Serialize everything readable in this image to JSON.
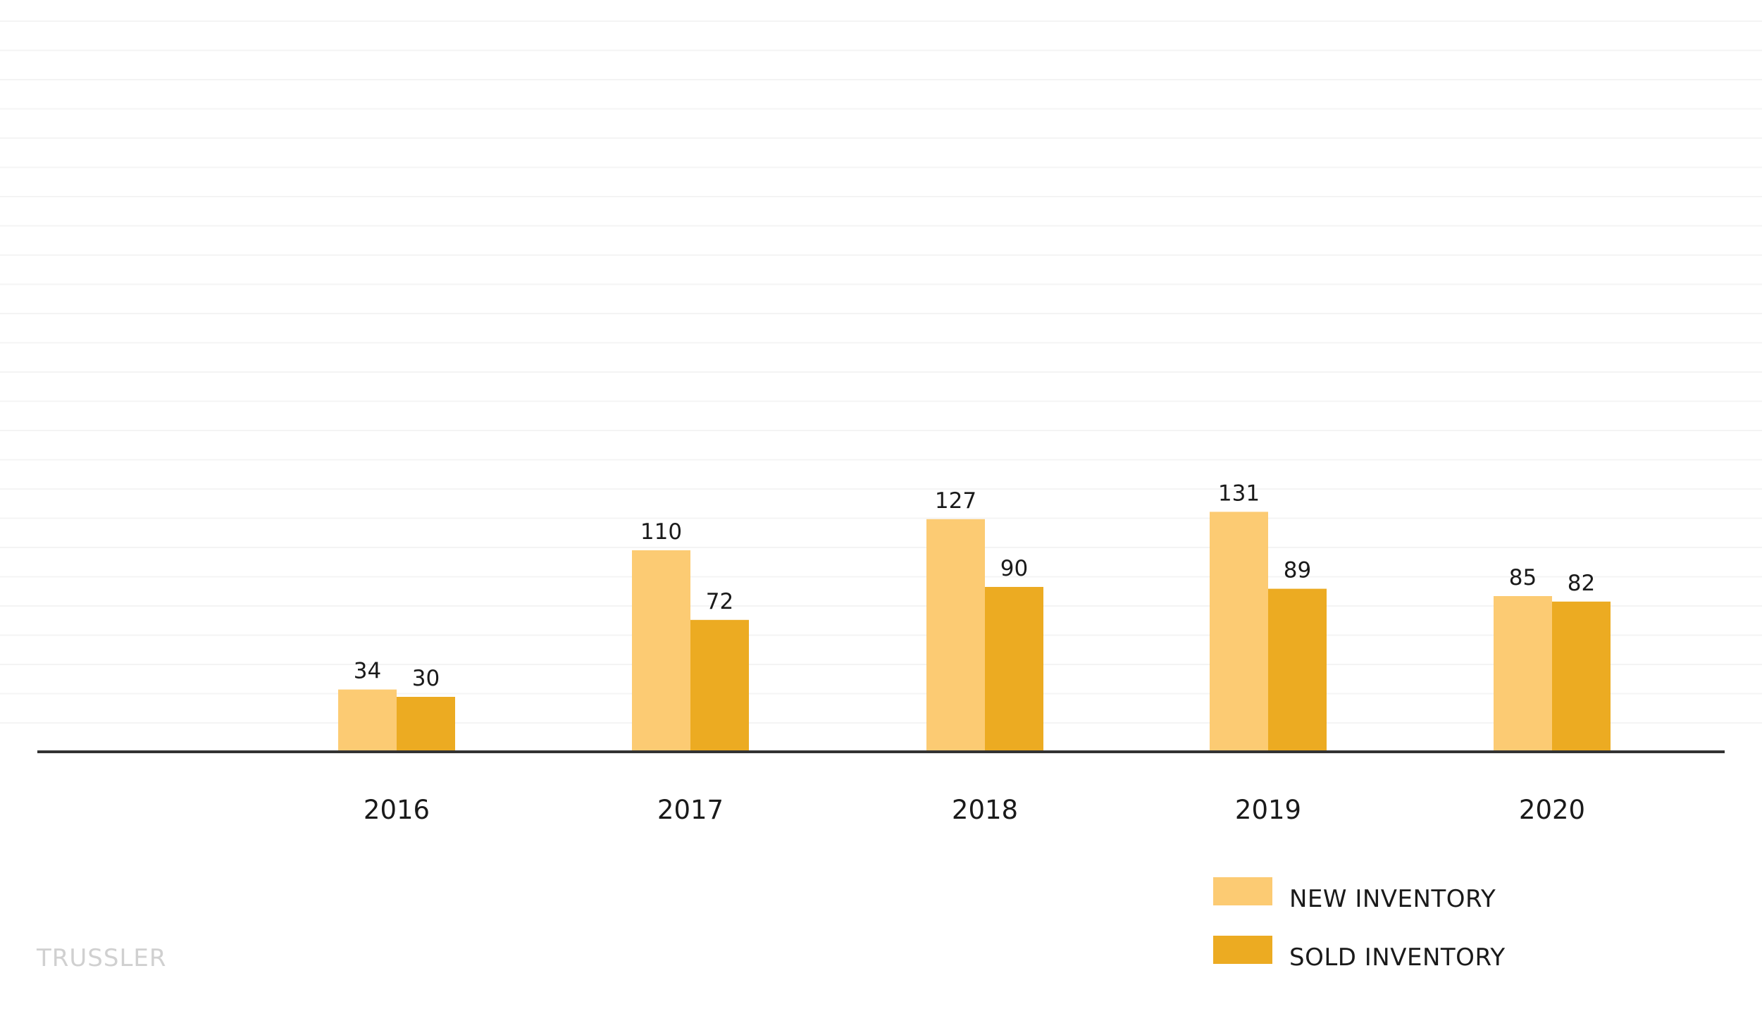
{
  "brand": "TRUSSLER",
  "colors": {
    "new": "#fccb73",
    "sold": "#ecab22",
    "axis": "#333333",
    "grid": "#f4f4f4",
    "brand": "#d0d0d0"
  },
  "chart_data": {
    "type": "bar",
    "title": "",
    "xlabel": "",
    "ylabel": "",
    "categories": [
      "2016",
      "2017",
      "2018",
      "2019",
      "2020"
    ],
    "series": [
      {
        "name": "NEW INVENTORY",
        "values": [
          34,
          110,
          127,
          131,
          85
        ]
      },
      {
        "name": "SOLD INVENTORY",
        "values": [
          30,
          72,
          90,
          89,
          82
        ]
      }
    ],
    "ylim": [
      0,
      250
    ],
    "grid": true,
    "legend_position": "bottom-right"
  }
}
